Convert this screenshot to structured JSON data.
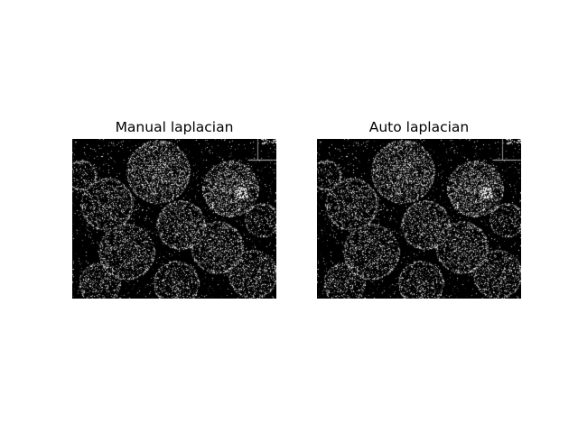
{
  "panels": [
    {
      "title": "Manual laplacian"
    },
    {
      "title": "Auto laplacian"
    }
  ],
  "colors": {
    "background": "#ffffff",
    "image_background": "#000000",
    "edge_pixels": "#ffffff"
  }
}
